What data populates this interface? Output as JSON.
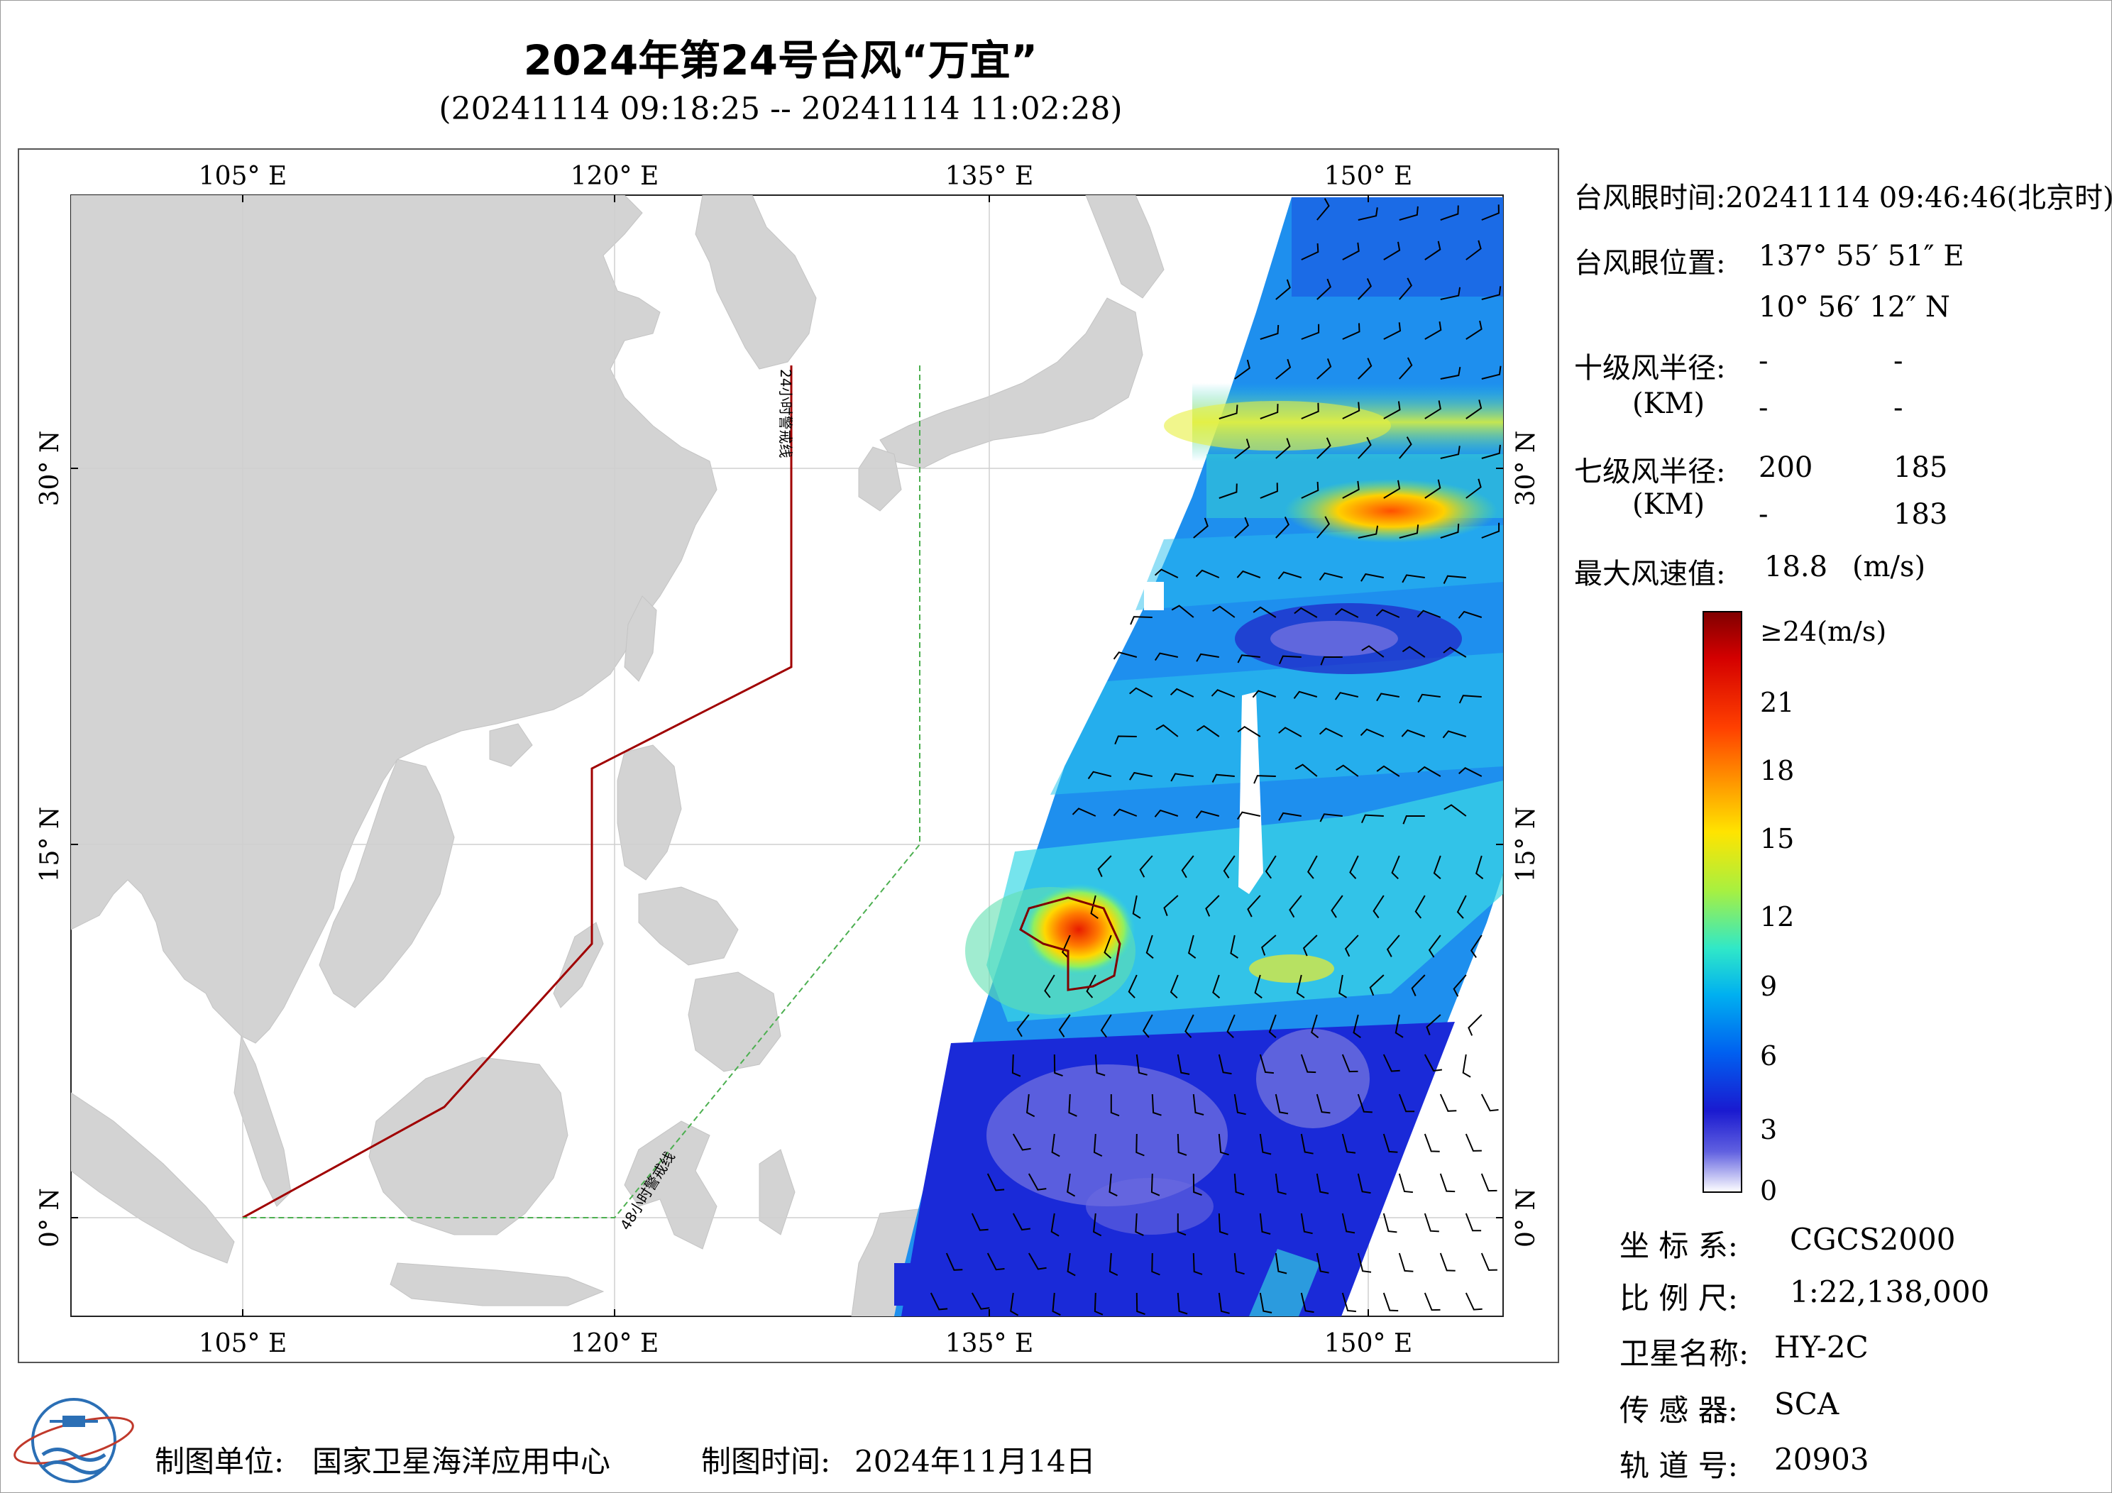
{
  "title": "2024年第24号台风“万宜”",
  "subtitle": "(20241114 09:18:25 -- 20241114 11:02:28)",
  "map": {
    "lon_labels": [
      "105° E",
      "120° E",
      "135° E",
      "150° E"
    ],
    "lat_labels": [
      "30° N",
      "15° N",
      "0° N"
    ],
    "warning_24h": "24小时警戒线",
    "warning_48h": "48小时警戒线"
  },
  "info": {
    "eye_time_label": "台风眼时间:",
    "eye_time_value": "20241114 09:46:46(北京时)",
    "eye_pos_label": "台风眼位置:",
    "eye_lon": "137° 55′ 51″ E",
    "eye_lat": "10° 56′ 12″ N",
    "r10_label": "十级风半径:",
    "r10_unit": "(KM)",
    "r10_values": [
      "-",
      "-",
      "-",
      "-"
    ],
    "r7_label": "七级风半径:",
    "r7_unit": "(KM)",
    "r7_values": [
      "200",
      "185",
      "-",
      "183"
    ],
    "max_wind_label": "最大风速值:",
    "max_wind_value": "18.8",
    "max_wind_unit": "(m/s)"
  },
  "colorbar": {
    "labels": [
      "≥24(m/s)",
      "21",
      "18",
      "15",
      "12",
      "9",
      "6",
      "3",
      "0"
    ],
    "colors": [
      "#800000",
      "#d40000",
      "#ff4000",
      "#ff9c00",
      "#ffe400",
      "#a8f040",
      "#30e8c8",
      "#00b0f0",
      "#0060f0",
      "#1a1ad0",
      "#6060e0",
      "#ffffff"
    ]
  },
  "meta": {
    "crs_label": "坐 标 系:",
    "crs_value": "CGCS2000",
    "scale_label": "比 例 尺:",
    "scale_value": "1:22,138,000",
    "sat_label": "卫星名称:",
    "sat_value": "HY-2C",
    "sensor_label": "传 感 器:",
    "sensor_value": "SCA",
    "orbit_label": "轨 道 号:",
    "orbit_value": "20903"
  },
  "footer": {
    "unit_label": "制图单位:",
    "unit_value": "国家卫星海洋应用中心",
    "date_label": "制图时间:",
    "date_value": "2024年11月14日"
  }
}
